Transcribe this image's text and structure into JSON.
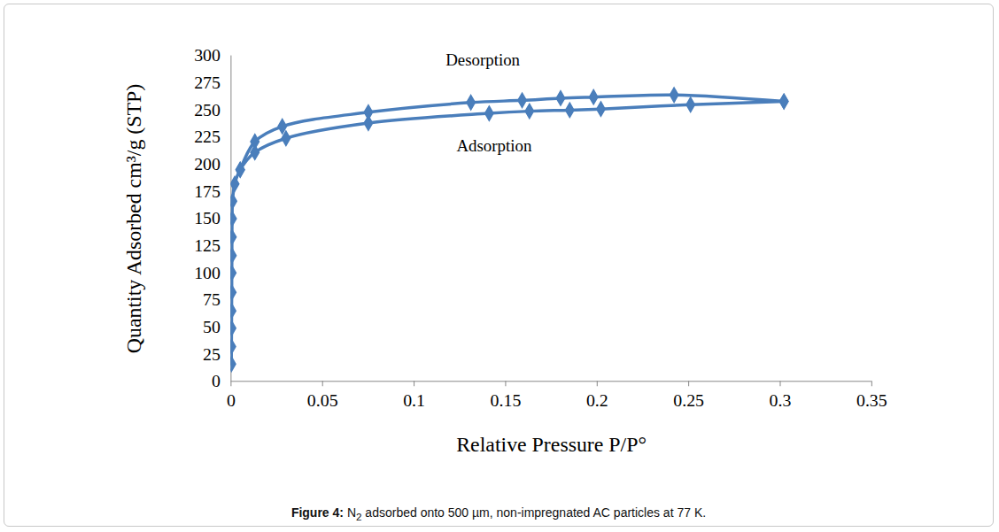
{
  "chart_data": {
    "type": "line",
    "x_label": "Relative Pressure P/P°",
    "y_label": "Quantity Adsorbed cm³/g (STP)",
    "xlim": [
      0,
      0.35
    ],
    "xticks": [
      0,
      0.05,
      0.1,
      0.15,
      0.2,
      0.25,
      0.3,
      0.35
    ],
    "ylim": [
      0,
      300
    ],
    "yticks": [
      0,
      25,
      50,
      75,
      100,
      125,
      150,
      175,
      200,
      225,
      250,
      275,
      300
    ],
    "grid": false,
    "marker": "diamond",
    "line_style": "solid",
    "series": [
      {
        "name": "Adsorption",
        "color": "#4a7ebb",
        "x": [
          0.0002,
          0.0002,
          0.0003,
          0.0003,
          0.0004,
          0.0004,
          0.0005,
          0.0005,
          0.0006,
          0.0008,
          0.002,
          0.005,
          0.013,
          0.03,
          0.075,
          0.141,
          0.163,
          0.185,
          0.202,
          0.251,
          0.302
        ],
        "values": [
          16,
          32,
          49,
          65,
          82,
          100,
          116,
          133,
          150,
          166,
          182,
          195,
          211,
          224,
          238,
          247,
          249,
          250,
          251,
          255,
          258
        ]
      },
      {
        "name": "Desorption",
        "color": "#4a7ebb",
        "x": [
          0.302,
          0.242,
          0.198,
          0.18,
          0.159,
          0.131,
          0.075,
          0.028,
          0.013,
          0.005
        ],
        "values": [
          258,
          264,
          262,
          261,
          259,
          257,
          248,
          235,
          221,
          195
        ]
      }
    ],
    "annotations": [
      {
        "text": "Desorption",
        "x": 0.1375,
        "y": 296
      },
      {
        "text": "Adsorption",
        "x": 0.1437,
        "y": 217
      }
    ],
    "caption": {
      "label": "Figure 4:",
      "text": " N",
      "subscript": "2",
      "rest": " adsorbed onto 500 µm, non-impregnated AC particles at 77 K."
    }
  }
}
